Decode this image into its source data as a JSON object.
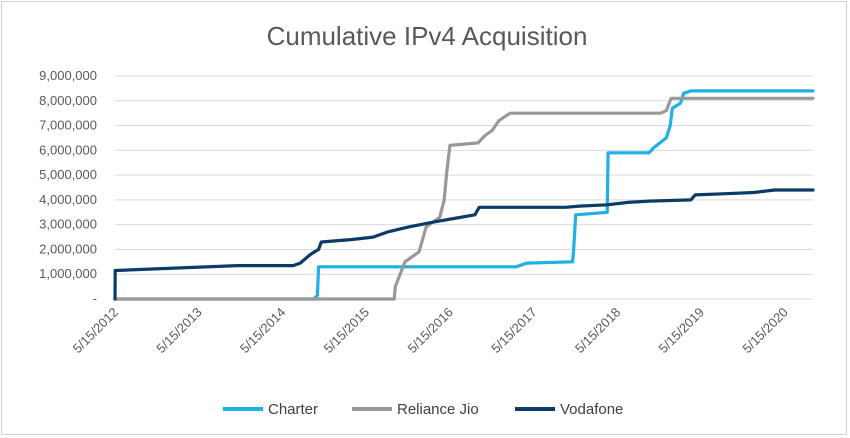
{
  "chart_data": {
    "type": "line",
    "title": "Cumulative IPv4 Acquisition",
    "xlabel": "",
    "ylabel": "",
    "ylim": [
      0,
      9000000
    ],
    "xlim": [
      "2012-05-15",
      "2020-09-15"
    ],
    "x_tick_labels": [
      "5/15/2012",
      "5/15/2013",
      "5/15/2014",
      "5/15/2015",
      "5/15/2016",
      "5/15/2017",
      "5/15/2018",
      "5/15/2019",
      "5/15/2020"
    ],
    "y_tick_labels": [
      "-",
      "1,000,000",
      "2,000,000",
      "3,000,000",
      "4,000,000",
      "5,000,000",
      "6,000,000",
      "7,000,000",
      "8,000,000",
      "9,000,000"
    ],
    "y_ticks": [
      0,
      1000000,
      2000000,
      3000000,
      4000000,
      5000000,
      6000000,
      7000000,
      8000000,
      9000000
    ],
    "grid": "horizontal",
    "legend_position": "bottom",
    "series": [
      {
        "name": "Charter",
        "color": "#1fb0e4",
        "points": [
          [
            "2012-05-15",
            0
          ],
          [
            "2014-09-05",
            0
          ],
          [
            "2014-10-01",
            0
          ],
          [
            "2014-10-15",
            150000
          ],
          [
            "2014-10-20",
            1300000
          ],
          [
            "2017-03-01",
            1300000
          ],
          [
            "2017-04-15",
            1450000
          ],
          [
            "2017-11-01",
            1500000
          ],
          [
            "2017-11-05",
            1900000
          ],
          [
            "2017-11-15",
            3400000
          ],
          [
            "2018-04-01",
            3500000
          ],
          [
            "2018-04-05",
            5900000
          ],
          [
            "2018-10-01",
            5900000
          ],
          [
            "2018-10-20",
            6100000
          ],
          [
            "2018-12-15",
            6500000
          ],
          [
            "2019-01-01",
            7000000
          ],
          [
            "2019-01-10",
            7700000
          ],
          [
            "2019-02-15",
            7900000
          ],
          [
            "2019-03-01",
            8300000
          ],
          [
            "2019-04-01",
            8400000
          ],
          [
            "2020-09-15",
            8400000
          ]
        ]
      },
      {
        "name": "Reliance Jio",
        "color": "#999999",
        "points": [
          [
            "2012-05-15",
            0
          ],
          [
            "2015-09-15",
            0
          ],
          [
            "2015-09-20",
            500000
          ],
          [
            "2015-11-01",
            1500000
          ],
          [
            "2016-01-01",
            1900000
          ],
          [
            "2016-02-01",
            2900000
          ],
          [
            "2016-04-01",
            3300000
          ],
          [
            "2016-04-20",
            4000000
          ],
          [
            "2016-05-01",
            5100000
          ],
          [
            "2016-05-15",
            6200000
          ],
          [
            "2016-09-15",
            6300000
          ],
          [
            "2016-10-15",
            6600000
          ],
          [
            "2016-11-15",
            6800000
          ],
          [
            "2016-12-15",
            7200000
          ],
          [
            "2017-02-01",
            7500000
          ],
          [
            "2018-11-20",
            7500000
          ],
          [
            "2018-12-15",
            7600000
          ],
          [
            "2019-01-05",
            8100000
          ],
          [
            "2020-09-15",
            8100000
          ]
        ]
      },
      {
        "name": "Vodafone",
        "color": "#0c3b66",
        "points": [
          [
            "2012-05-15",
            0
          ],
          [
            "2012-05-16",
            1150000
          ],
          [
            "2013-11-01",
            1350000
          ],
          [
            "2014-07-01",
            1350000
          ],
          [
            "2014-08-01",
            1450000
          ],
          [
            "2014-09-15",
            1800000
          ],
          [
            "2014-10-20",
            2000000
          ],
          [
            "2014-11-01",
            2300000
          ],
          [
            "2015-03-15",
            2400000
          ],
          [
            "2015-06-15",
            2500000
          ],
          [
            "2015-08-15",
            2700000
          ],
          [
            "2015-11-15",
            2900000
          ],
          [
            "2016-03-01",
            3100000
          ],
          [
            "2016-06-01",
            3250000
          ],
          [
            "2016-09-01",
            3400000
          ],
          [
            "2016-09-20",
            3700000
          ],
          [
            "2017-10-01",
            3700000
          ],
          [
            "2017-12-01",
            3750000
          ],
          [
            "2018-04-01",
            3800000
          ],
          [
            "2018-07-01",
            3900000
          ],
          [
            "2018-10-01",
            3950000
          ],
          [
            "2019-04-01",
            4000000
          ],
          [
            "2019-04-20",
            4200000
          ],
          [
            "2019-09-01",
            4250000
          ],
          [
            "2020-01-01",
            4300000
          ],
          [
            "2020-04-01",
            4400000
          ],
          [
            "2020-09-15",
            4400000
          ]
        ]
      }
    ]
  }
}
